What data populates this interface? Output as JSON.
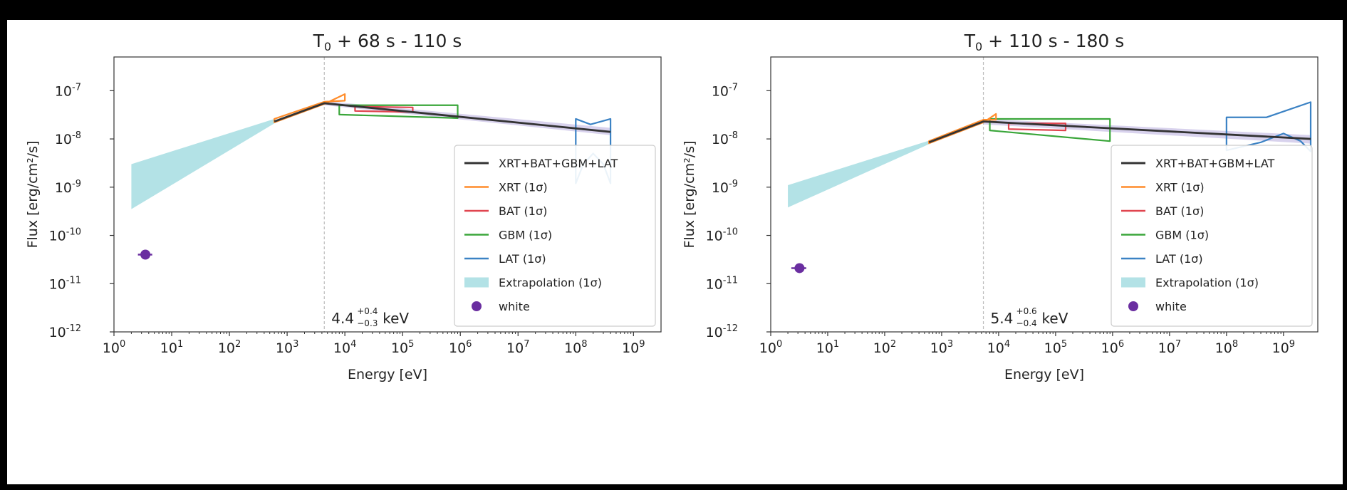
{
  "chart_data": [
    {
      "type": "line",
      "title": "T0 + 68 s - 110 s",
      "title_parts": {
        "main": "T",
        "sub": "0",
        "rest": " + 68 s - 110 s"
      },
      "xlabel": "Energy [eV]",
      "ylabel": "Flux [erg/cm²/s]",
      "x_scale": "log",
      "y_scale": "log",
      "xlim": [
        1,
        3000000000.0
      ],
      "ylim": [
        1e-12,
        5e-07
      ],
      "x_ticks": [
        {
          "exp": "0"
        },
        {
          "exp": "1"
        },
        {
          "exp": "2"
        },
        {
          "exp": "3"
        },
        {
          "exp": "4"
        },
        {
          "exp": "5"
        },
        {
          "exp": "6"
        },
        {
          "exp": "7"
        },
        {
          "exp": "8"
        },
        {
          "exp": "9"
        }
      ],
      "y_ticks": [
        {
          "exp": "-7"
        },
        {
          "exp": "-8"
        },
        {
          "exp": "-9"
        },
        {
          "exp": "-10"
        },
        {
          "exp": "-11"
        },
        {
          "exp": "-12"
        }
      ],
      "peak_annotation": {
        "energy_ev": 4400,
        "value": "4.4",
        "plus": "+0.4",
        "minus": "−0.3",
        "unit": "keV"
      },
      "legend": {
        "location": "lower right",
        "entries": [
          {
            "label": "XRT+BAT+GBM+LAT",
            "color": "#333333",
            "kind": "line"
          },
          {
            "label": "XRT (1σ)",
            "color": "#ff8c2a",
            "kind": "line"
          },
          {
            "label": "BAT (1σ)",
            "color": "#e0454f",
            "kind": "line"
          },
          {
            "label": "GBM (1σ)",
            "color": "#3aa63a",
            "kind": "line"
          },
          {
            "label": "LAT (1σ)",
            "color": "#3b82c4",
            "kind": "line"
          },
          {
            "label": "Extrapolation (1σ)",
            "color": "#b3e2e6",
            "kind": "patch"
          },
          {
            "label": "white",
            "color": "#6a2ea0",
            "kind": "marker"
          }
        ]
      },
      "joint_model": {
        "color": "#333333",
        "points": [
          [
            600,
            2.3e-08
          ],
          [
            4400,
            5.5e-08
          ],
          [
            400000000.0,
            1.4e-08
          ]
        ]
      },
      "joint_band": {
        "color": "#a99bd6",
        "upper": [
          [
            4400,
            6.1e-08
          ],
          [
            400000000.0,
            1.7e-08
          ]
        ],
        "lower": [
          [
            4400,
            5e-08
          ],
          [
            400000000.0,
            1.2e-08
          ]
        ]
      },
      "extrapolation": {
        "color": "#b3e2e6",
        "upper": [
          [
            2,
            3e-09
          ],
          [
            600,
            2.6e-08
          ]
        ],
        "lower": [
          [
            2,
            3.5e-10
          ],
          [
            600,
            2.1e-08
          ]
        ]
      },
      "xrt": {
        "color": "#ff8c2a",
        "polygons": [
          [
            [
              600,
              2.2e-08
            ],
            [
              4400,
              5.3e-08
            ],
            [
              10000.0,
              8.5e-08
            ],
            [
              10000.0,
              6.2e-08
            ],
            [
              4400,
              5.9e-08
            ],
            [
              600,
              2.6e-08
            ]
          ]
        ]
      },
      "bat": {
        "color": "#e0454f",
        "polygons": [
          [
            [
              15000.0,
              4.7e-08
            ],
            [
              150000.0,
              4.5e-08
            ],
            [
              150000.0,
              3.6e-08
            ],
            [
              15000.0,
              3.8e-08
            ]
          ]
        ]
      },
      "gbm": {
        "color": "#3aa63a",
        "polygons": [
          [
            [
              8000.0,
              5e-08
            ],
            [
              900000.0,
              5e-08
            ],
            [
              900000.0,
              2.7e-08
            ],
            [
              8000.0,
              3.2e-08
            ]
          ]
        ]
      },
      "lat": {
        "color": "#3b82c4",
        "polygons": [
          [
            [
              100000000.0,
              2.6e-08
            ],
            [
              180000000.0,
              2e-08
            ],
            [
              400000000.0,
              2.6e-08
            ],
            [
              400000000.0,
              1.2e-09
            ],
            [
              300000000.0,
              3e-09
            ],
            [
              200000000.0,
              5e-09
            ],
            [
              135000000.0,
              3e-09
            ],
            [
              100000000.0,
              1.2e-09
            ]
          ]
        ]
      },
      "white_point": {
        "color": "#6a2ea0",
        "x": 3.5,
        "y": 4e-11,
        "xerr": [
          2.6,
          4.6
        ],
        "yerr": [
          3.5e-11,
          4.6e-11
        ]
      }
    },
    {
      "type": "line",
      "title": "T0 + 110 s - 180 s",
      "title_parts": {
        "main": "T",
        "sub": "0",
        "rest": " + 110 s - 180 s"
      },
      "xlabel": "Energy [eV]",
      "ylabel": "Flux [erg/cm²/s]",
      "x_scale": "log",
      "y_scale": "log",
      "xlim": [
        1,
        4000000000.0
      ],
      "ylim": [
        1e-12,
        5e-07
      ],
      "x_ticks": [
        {
          "exp": "0"
        },
        {
          "exp": "1"
        },
        {
          "exp": "2"
        },
        {
          "exp": "3"
        },
        {
          "exp": "4"
        },
        {
          "exp": "5"
        },
        {
          "exp": "6"
        },
        {
          "exp": "7"
        },
        {
          "exp": "8"
        },
        {
          "exp": "9"
        }
      ],
      "y_ticks": [
        {
          "exp": "-7"
        },
        {
          "exp": "-8"
        },
        {
          "exp": "-9"
        },
        {
          "exp": "-10"
        },
        {
          "exp": "-11"
        },
        {
          "exp": "-12"
        }
      ],
      "peak_annotation": {
        "energy_ev": 5400,
        "value": "5.4",
        "plus": "+0.6",
        "minus": "−0.4",
        "unit": "keV"
      },
      "legend": {
        "location": "lower right",
        "entries": [
          {
            "label": "XRT+BAT+GBM+LAT",
            "color": "#333333",
            "kind": "line"
          },
          {
            "label": "XRT (1σ)",
            "color": "#ff8c2a",
            "kind": "line"
          },
          {
            "label": "BAT (1σ)",
            "color": "#e0454f",
            "kind": "line"
          },
          {
            "label": "GBM (1σ)",
            "color": "#3aa63a",
            "kind": "line"
          },
          {
            "label": "LAT (1σ)",
            "color": "#3b82c4",
            "kind": "line"
          },
          {
            "label": "Extrapolation (1σ)",
            "color": "#b3e2e6",
            "kind": "patch"
          },
          {
            "label": "white",
            "color": "#6a2ea0",
            "kind": "marker"
          }
        ]
      },
      "joint_model": {
        "color": "#333333",
        "points": [
          [
            600,
            8.5e-09
          ],
          [
            5400,
            2.3e-08
          ],
          [
            3000000000.0,
            1e-08
          ]
        ]
      },
      "joint_band": {
        "color": "#a99bd6",
        "upper": [
          [
            5400,
            2.6e-08
          ],
          [
            3000000000.0,
            1.2e-08
          ]
        ],
        "lower": [
          [
            5400,
            2e-08
          ],
          [
            3000000000.0,
            8e-09
          ]
        ]
      },
      "extrapolation": {
        "color": "#b3e2e6",
        "upper": [
          [
            2,
            1.1e-09
          ],
          [
            600,
            9.2e-09
          ]
        ],
        "lower": [
          [
            2,
            3.8e-10
          ],
          [
            600,
            7.8e-09
          ]
        ]
      },
      "xrt": {
        "color": "#ff8c2a",
        "polygons": [
          [
            [
              600,
              8.1e-09
            ],
            [
              5400,
              2.2e-08
            ],
            [
              9000.0,
              3.3e-08
            ],
            [
              9000.0,
              2.5e-08
            ],
            [
              5400,
              2.5e-08
            ],
            [
              600,
              9e-09
            ]
          ]
        ]
      },
      "bat": {
        "color": "#e0454f",
        "polygons": [
          [
            [
              15000.0,
              2.1e-08
            ],
            [
              150000.0,
              2.1e-08
            ],
            [
              150000.0,
              1.5e-08
            ],
            [
              15000.0,
              1.6e-08
            ]
          ]
        ]
      },
      "gbm": {
        "color": "#3aa63a",
        "polygons": [
          [
            [
              7000.0,
              2.6e-08
            ],
            [
              900000.0,
              2.6e-08
            ],
            [
              900000.0,
              9e-09
            ],
            [
              7000.0,
              1.5e-08
            ]
          ]
        ]
      },
      "lat": {
        "color": "#3b82c4",
        "polygons": [
          [
            [
              100000000.0,
              2.8e-08
            ],
            [
              500000000.0,
              2.8e-08
            ],
            [
              3000000000.0,
              5.8e-08
            ],
            [
              3000000000.0,
              5.5e-09
            ],
            [
              2000000000.0,
              9e-09
            ],
            [
              1000000000.0,
              1.3e-08
            ],
            [
              400000000.0,
              8.5e-09
            ],
            [
              100000000.0,
              5.8e-09
            ]
          ]
        ]
      },
      "white_point": {
        "color": "#6a2ea0",
        "x": 3.2,
        "y": 2.1e-11,
        "xerr": [
          2.3,
          4.2
        ],
        "yerr": [
          1.8e-11,
          2.4e-11
        ]
      }
    }
  ]
}
